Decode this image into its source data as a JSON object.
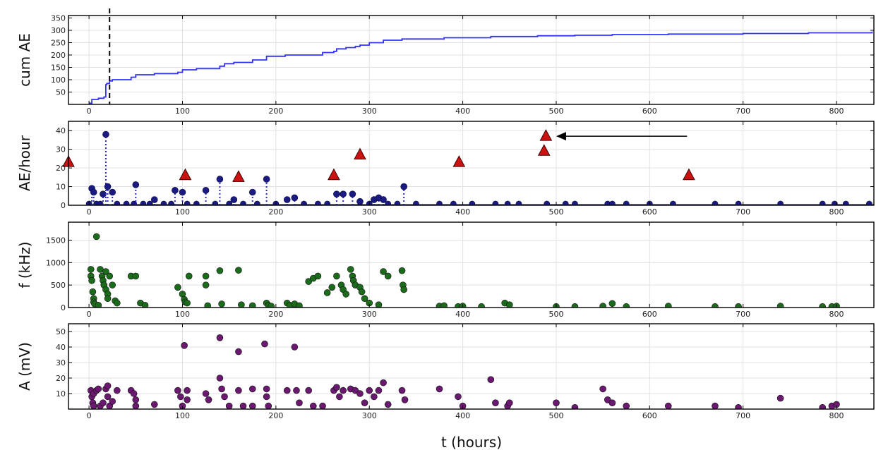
{
  "chart_data": {
    "type": "scatter",
    "xlabel": "t (hours)",
    "xlim": [
      -22,
      840
    ],
    "xticks": [
      0,
      100,
      200,
      300,
      400,
      500,
      600,
      700,
      800
    ],
    "grid": true,
    "marker_line": {
      "x": 22,
      "style": "dashed",
      "color": "#000000"
    },
    "panels": [
      {
        "id": "cum",
        "type": "line",
        "ylabel": "cum AE",
        "ylim": [
          0,
          360
        ],
        "yticks": [
          50,
          100,
          150,
          200,
          250,
          300,
          350
        ],
        "color": "#3333ff",
        "series": [
          {
            "x": [
              0,
              3,
              10,
              16,
              18,
              19,
              22,
              25,
              45,
              50,
              70,
              95,
              100,
              115,
              140,
              145,
              155,
              175,
              190,
              210,
              250,
              262,
              265,
              275,
              285,
              290,
              300,
              315,
              335,
              380,
              430,
              480,
              520,
              560,
              620,
              700,
              770,
              838
            ],
            "y": [
              5,
              20,
              25,
              30,
              80,
              85,
              95,
              100,
              110,
              120,
              125,
              130,
              140,
              145,
              155,
              165,
              170,
              180,
              195,
              200,
              210,
              215,
              225,
              230,
              235,
              240,
              250,
              260,
              265,
              270,
              275,
              278,
              280,
              283,
              285,
              287,
              290,
              295
            ]
          }
        ]
      },
      {
        "id": "rate",
        "type": "scatter",
        "ylabel": "AE/hour",
        "ylim": [
          0,
          45
        ],
        "yticks": [
          0,
          10,
          20,
          30,
          40
        ],
        "color": "#1a1a80",
        "stems": [
          {
            "x": 3,
            "y": 9
          },
          {
            "x": 5,
            "y": 7
          },
          {
            "x": 15,
            "y": 6
          },
          {
            "x": 18,
            "y": 38
          },
          {
            "x": 20,
            "y": 10
          },
          {
            "x": 25,
            "y": 7
          },
          {
            "x": 50,
            "y": 11
          },
          {
            "x": 70,
            "y": 3
          },
          {
            "x": 92,
            "y": 8
          },
          {
            "x": 100,
            "y": 7
          },
          {
            "x": 125,
            "y": 8
          },
          {
            "x": 140,
            "y": 14
          },
          {
            "x": 155,
            "y": 3
          },
          {
            "x": 175,
            "y": 7
          },
          {
            "x": 190,
            "y": 14
          },
          {
            "x": 212,
            "y": 3
          },
          {
            "x": 220,
            "y": 4
          },
          {
            "x": 265,
            "y": 6
          },
          {
            "x": 272,
            "y": 6
          },
          {
            "x": 282,
            "y": 6
          },
          {
            "x": 290,
            "y": 2
          },
          {
            "x": 305,
            "y": 3
          },
          {
            "x": 310,
            "y": 4
          },
          {
            "x": 315,
            "y": 3
          },
          {
            "x": 337,
            "y": 10
          }
        ],
        "baseline_points": [
          0,
          8,
          12,
          30,
          40,
          48,
          58,
          65,
          80,
          88,
          105,
          115,
          135,
          150,
          165,
          180,
          200,
          230,
          245,
          255,
          300,
          320,
          330,
          350,
          375,
          390,
          410,
          435,
          448,
          460,
          490,
          510,
          520,
          555,
          560,
          575,
          600,
          625,
          670,
          695,
          740,
          785,
          798,
          810,
          835
        ],
        "events": {
          "marker": "triangle",
          "color": "#cc1111",
          "x": [
            -22,
            103,
            160,
            262,
            290,
            396,
            487,
            489,
            642
          ],
          "y": [
            23,
            16,
            15,
            16,
            27,
            23,
            29,
            37,
            16
          ]
        },
        "annotation_arrow": {
          "from_x": 640,
          "to_x": 500,
          "y": 37
        }
      },
      {
        "id": "freq",
        "type": "scatter",
        "ylabel": "f (kHz)",
        "ylim": [
          0,
          1900
        ],
        "yticks": [
          0,
          500,
          1000,
          1500
        ],
        "color": "#1c6b1c",
        "x": [
          2,
          2,
          3,
          4,
          5,
          5,
          6,
          8,
          10,
          12,
          14,
          15,
          16,
          18,
          18,
          20,
          20,
          22,
          25,
          28,
          30,
          45,
          50,
          55,
          60,
          95,
          100,
          102,
          103,
          105,
          107,
          125,
          125,
          127,
          140,
          142,
          160,
          163,
          175,
          190,
          192,
          195,
          212,
          215,
          220,
          225,
          235,
          240,
          245,
          255,
          260,
          265,
          270,
          272,
          275,
          280,
          282,
          283,
          285,
          290,
          292,
          295,
          300,
          310,
          315,
          320,
          335,
          336,
          337,
          375,
          380,
          395,
          400,
          420,
          445,
          450,
          500,
          520,
          550,
          560,
          575,
          620,
          670,
          695,
          740,
          785,
          795,
          800
        ],
        "y": [
          850,
          700,
          600,
          350,
          200,
          120,
          80,
          1580,
          50,
          850,
          700,
          600,
          500,
          800,
          400,
          300,
          200,
          700,
          500,
          150,
          100,
          700,
          700,
          100,
          50,
          450,
          300,
          180,
          120,
          100,
          700,
          700,
          500,
          40,
          820,
          80,
          830,
          60,
          40,
          100,
          50,
          30,
          100,
          50,
          80,
          40,
          580,
          650,
          700,
          330,
          450,
          700,
          500,
          400,
          300,
          850,
          700,
          600,
          500,
          450,
          350,
          200,
          100,
          60,
          800,
          700,
          820,
          500,
          400,
          30,
          40,
          20,
          30,
          20,
          100,
          60,
          20,
          20,
          30,
          90,
          20,
          30,
          20,
          20,
          30,
          20,
          20,
          30
        ]
      },
      {
        "id": "amp",
        "type": "scatter",
        "ylabel": "A (mV)",
        "ylim": [
          0,
          55
        ],
        "yticks": [
          10,
          20,
          30,
          40,
          50
        ],
        "color": "#6a1870",
        "x": [
          2,
          3,
          4,
          5,
          5,
          8,
          10,
          12,
          15,
          18,
          20,
          20,
          22,
          25,
          30,
          45,
          48,
          50,
          50,
          70,
          95,
          98,
          100,
          102,
          105,
          105,
          125,
          128,
          140,
          140,
          142,
          145,
          150,
          160,
          160,
          165,
          175,
          175,
          188,
          190,
          190,
          192,
          212,
          220,
          222,
          225,
          235,
          240,
          250,
          262,
          265,
          268,
          272,
          280,
          285,
          290,
          295,
          300,
          305,
          310,
          315,
          320,
          335,
          338,
          375,
          395,
          400,
          430,
          435,
          448,
          450,
          500,
          520,
          550,
          555,
          560,
          575,
          620,
          670,
          695,
          740,
          785,
          795,
          800
        ],
        "y": [
          12,
          8,
          4,
          2,
          10,
          12,
          13,
          2,
          4,
          13,
          15,
          8,
          2,
          5,
          12,
          12,
          10,
          6,
          2,
          3,
          12,
          8,
          2,
          41,
          12,
          6,
          10,
          6,
          46,
          20,
          13,
          8,
          2,
          37,
          12,
          2,
          13,
          2,
          42,
          13,
          8,
          2,
          12,
          40,
          12,
          4,
          12,
          2,
          2,
          12,
          14,
          8,
          12,
          13,
          12,
          10,
          4,
          12,
          8,
          12,
          17,
          3,
          12,
          6,
          13,
          8,
          2,
          19,
          4,
          2,
          4,
          4,
          1,
          13,
          6,
          4,
          2,
          2,
          2,
          1,
          7,
          1,
          2,
          3
        ]
      }
    ]
  }
}
